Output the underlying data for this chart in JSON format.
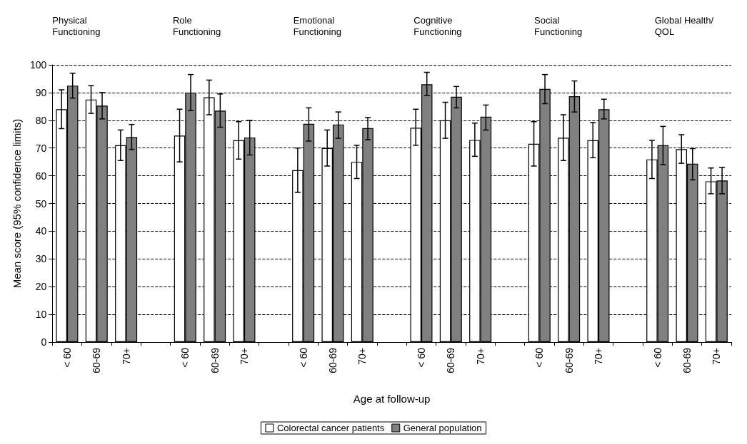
{
  "chart_data": {
    "type": "bar",
    "xlabel": "Age at follow-up",
    "ylabel": "Mean score (95% confidence limits)",
    "annotations": [
      "Physical\nFunctioning",
      "Role\nFunctioning",
      "Emotional\nFunctioning",
      "Cognitive\nFunctioning",
      "Social\nFunctioning",
      "Global Health/\nQOL"
    ],
    "categories": [
      "< 60",
      "60-69",
      "70+",
      null,
      "< 60",
      "60-69",
      "70+",
      null,
      "< 60",
      "60-69",
      "70+",
      null,
      "< 60",
      "60-69",
      "70+",
      null,
      "< 60",
      "60-69",
      "70+",
      null,
      "< 60",
      "60-69",
      "70+"
    ],
    "series": [
      {
        "name": "Colorectal cancer patients",
        "color": "#ffffff",
        "values": [
          84,
          87.5,
          71,
          null,
          74.5,
          88.3,
          72.8,
          null,
          62,
          70,
          65,
          null,
          77.3,
          80,
          72.9,
          null,
          71.5,
          73.7,
          72.8,
          null,
          65.9,
          69.6,
          58
        ],
        "errors": [
          [
            77,
            91
          ],
          [
            82.5,
            92.5
          ],
          [
            65.5,
            76.5
          ],
          null,
          [
            65,
            84
          ],
          [
            82,
            94.5
          ],
          [
            66,
            79.5
          ],
          null,
          [
            54,
            70
          ],
          [
            63.5,
            76.5
          ],
          [
            59,
            71
          ],
          null,
          [
            71,
            84
          ],
          [
            73.5,
            86.5
          ],
          [
            67,
            79
          ],
          null,
          [
            63.5,
            79.5
          ],
          [
            65.5,
            82
          ],
          [
            66.5,
            79.2
          ],
          null,
          [
            59,
            72.8
          ],
          [
            64.5,
            74.8
          ],
          [
            53.5,
            62.8
          ]
        ]
      },
      {
        "name": "General population",
        "color": "#808080",
        "values": [
          92.5,
          85.3,
          74,
          null,
          90,
          83.5,
          73.8,
          null,
          78.7,
          78.5,
          77.2,
          null,
          93,
          88.5,
          81.3,
          null,
          91.3,
          88.7,
          84,
          null,
          71,
          64.3,
          58.3
        ],
        "errors": [
          [
            88,
            97
          ],
          [
            80.5,
            90
          ],
          [
            69.5,
            78.5
          ],
          null,
          [
            83.5,
            96.5
          ],
          [
            77.5,
            89.5
          ],
          [
            67.5,
            80
          ],
          null,
          [
            72.5,
            84.5
          ],
          [
            73.5,
            83
          ],
          [
            73,
            81
          ],
          null,
          [
            89,
            97.3
          ],
          [
            84.5,
            92.2
          ],
          [
            76.5,
            85.5
          ],
          null,
          [
            86,
            96.5
          ],
          [
            83,
            94.2
          ],
          [
            80.5,
            87.6
          ],
          null,
          [
            64,
            77.8
          ],
          [
            58.5,
            69.8
          ],
          [
            53.5,
            63
          ]
        ]
      }
    ],
    "ylim": [
      0,
      100
    ],
    "yticks": [
      0,
      10,
      20,
      30,
      40,
      50,
      60,
      70,
      80,
      90,
      100
    ],
    "grid": "y",
    "legend": "bottom"
  }
}
